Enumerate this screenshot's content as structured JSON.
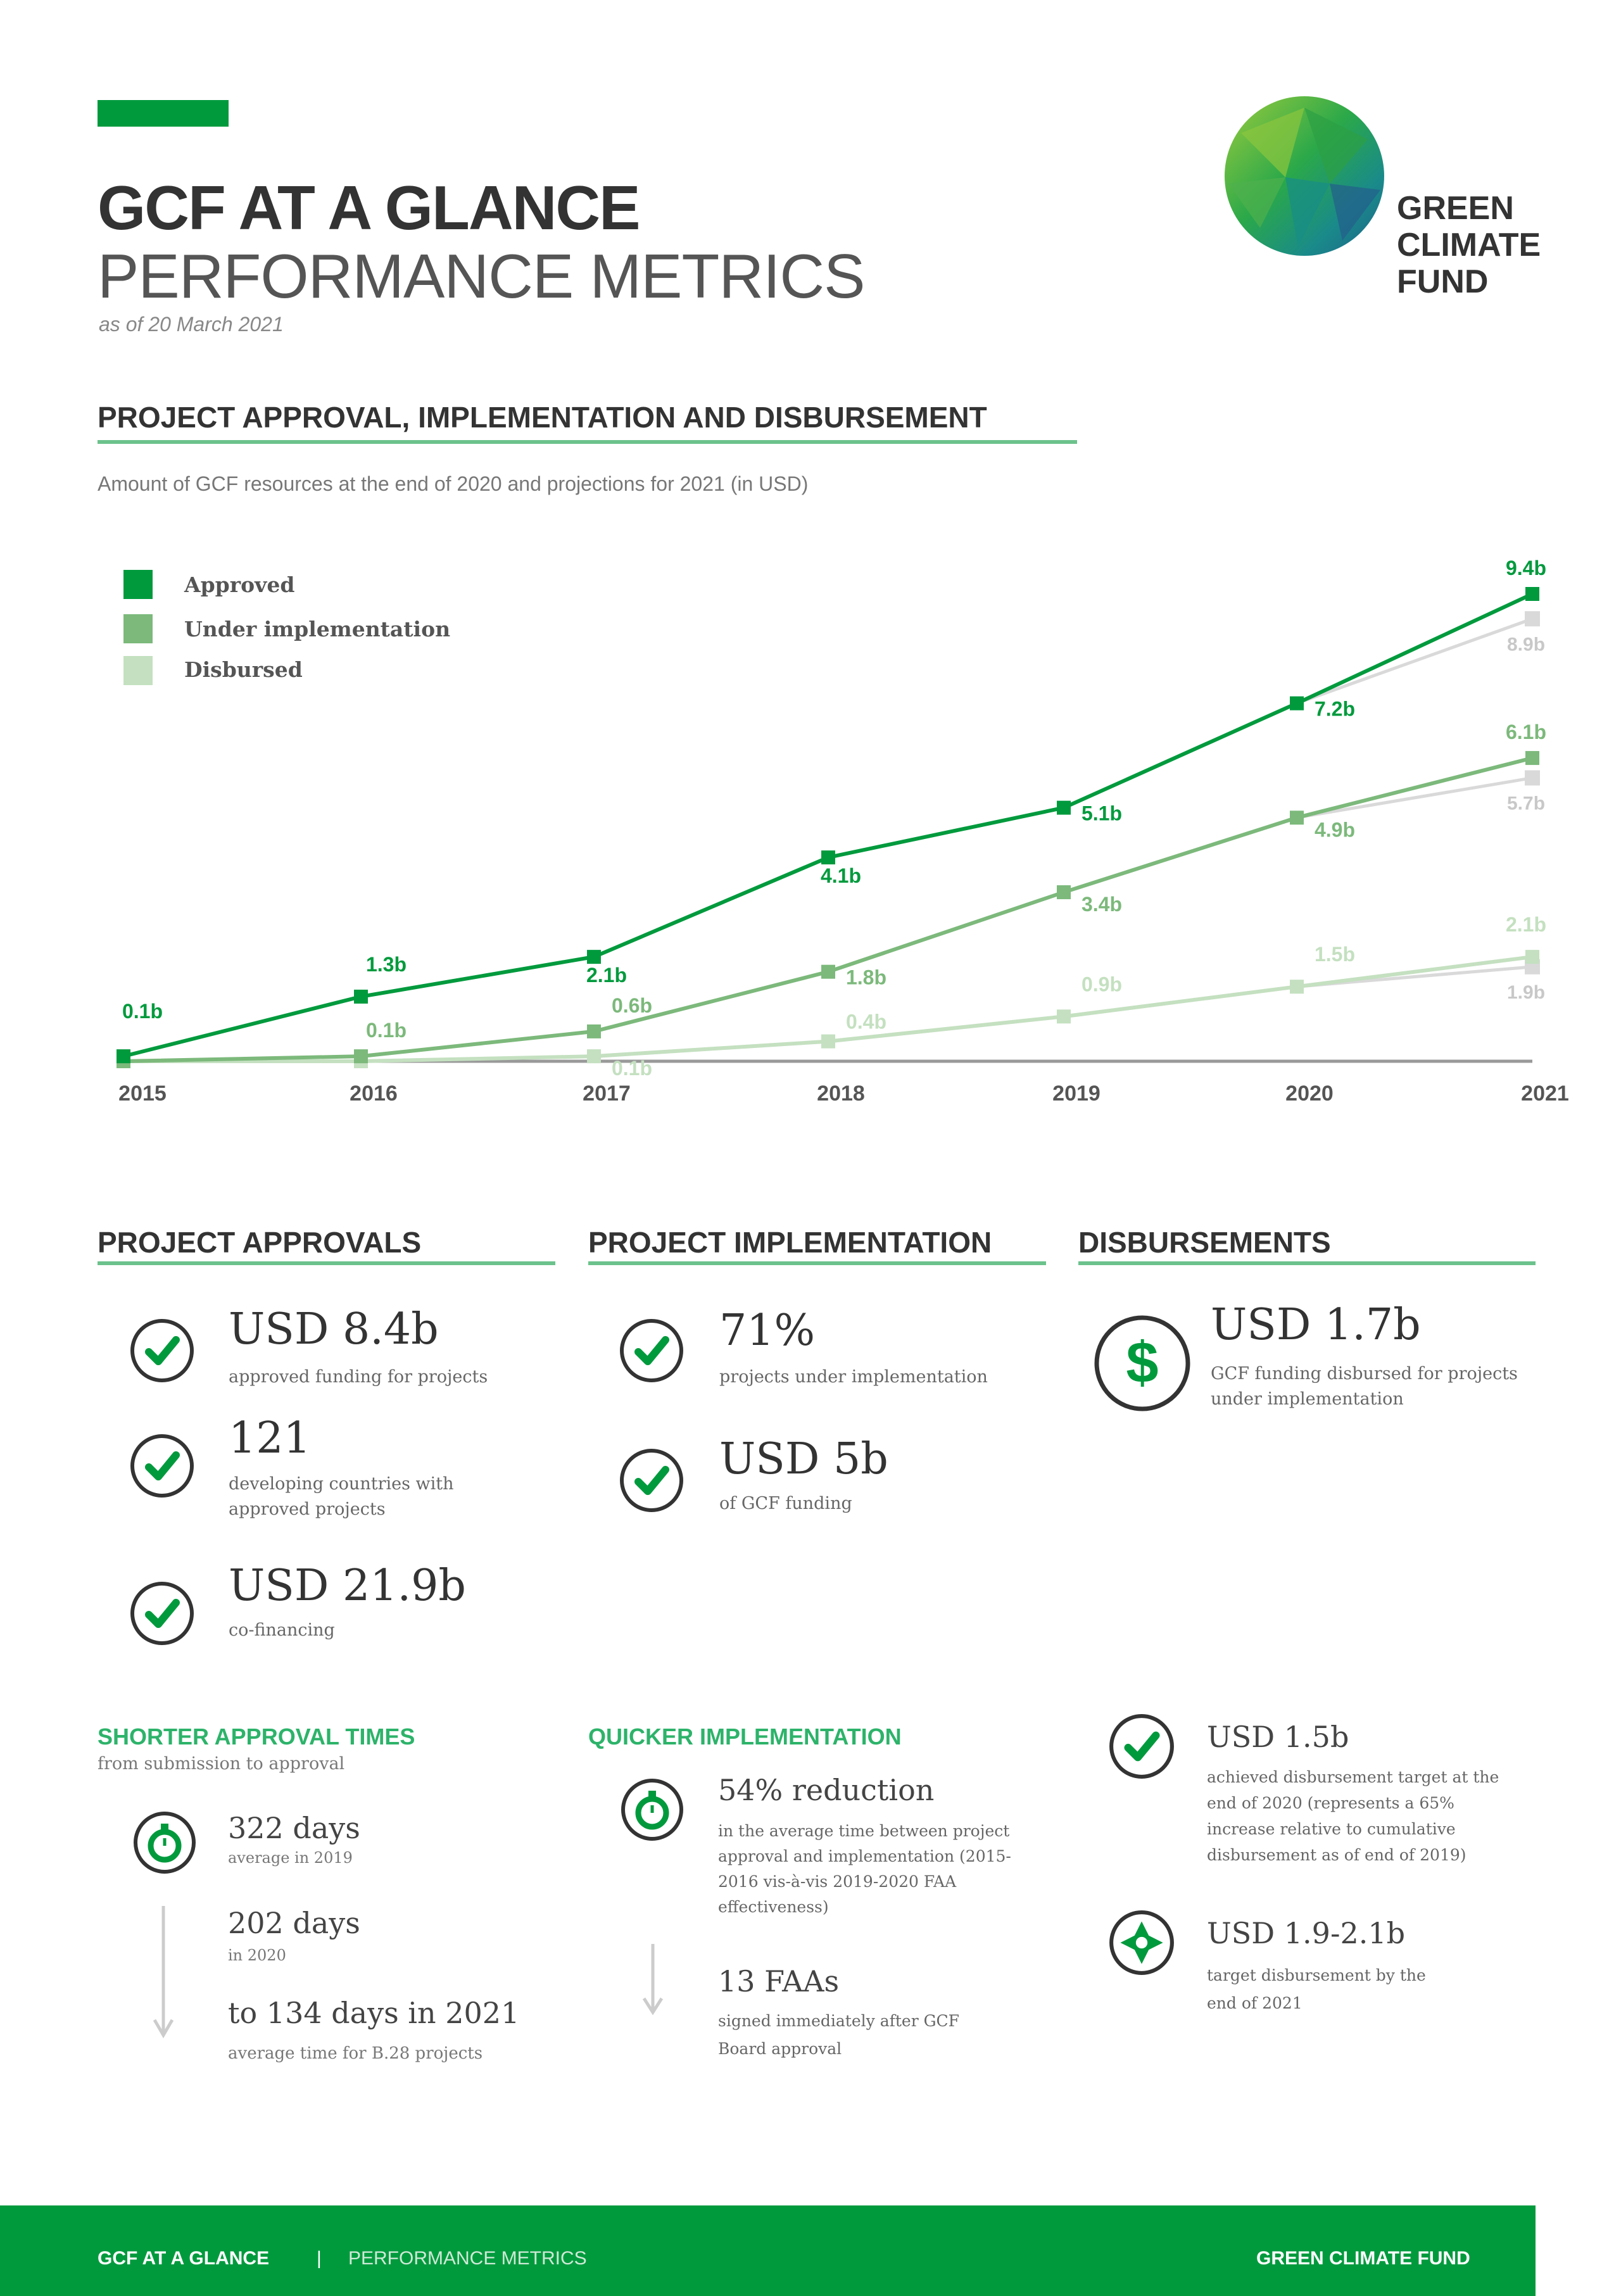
{
  "header": {
    "title": "GCF AT A GLANCE",
    "subtitle": "PERFORMANCE METRICS",
    "date": "as of 20 March 2021",
    "logo_text": [
      "GREEN",
      "CLIMATE",
      "FUND"
    ],
    "accent_color": "#009a3d"
  },
  "chart_section": {
    "heading": "PROJECT APPROVAL, IMPLEMENTATION AND DISBURSEMENT",
    "subheading": "Amount of GCF resources at the end of 2020 and projections for 2021 (in USD)"
  },
  "chart_data": {
    "type": "line",
    "title": "",
    "xlabel": "",
    "ylabel": "",
    "x": [
      "2015",
      "2016",
      "2017",
      "2018",
      "2019",
      "2020",
      "2021"
    ],
    "ylim": [
      0,
      9.4
    ],
    "grid": false,
    "legend_position": "top-left",
    "series": [
      {
        "name": "Approved",
        "color": "#009a3d",
        "values": [
          0.1,
          1.3,
          2.1,
          4.1,
          5.1,
          7.2,
          9.4
        ],
        "labels": [
          "0.1b",
          "1.3b",
          "2.1b",
          "4.1b",
          "5.1b",
          "7.2b",
          "9.4b"
        ],
        "projection_low": 8.9,
        "projection_low_label": "8.9b"
      },
      {
        "name": "Under implementation",
        "color": "#7cb97b",
        "values": [
          0,
          0.1,
          0.6,
          1.8,
          3.4,
          4.9,
          6.1
        ],
        "labels": [
          "",
          "0.1b",
          "0.6b",
          "1.8b",
          "3.4b",
          "4.9b",
          "6.1b"
        ],
        "projection_low": 5.7,
        "projection_low_label": "5.7b"
      },
      {
        "name": "Disbursed",
        "color": "#c4e0c0",
        "values": [
          0,
          0,
          0.1,
          0.4,
          0.9,
          1.5,
          2.1
        ],
        "labels": [
          "",
          "",
          "0.1b",
          "0.4b",
          "0.9b",
          "1.5b",
          "2.1b"
        ],
        "projection_low": 1.9,
        "projection_low_label": "1.9b"
      }
    ],
    "projection_color": "#d9d9d9"
  },
  "approvals": {
    "heading": "PROJECT APPROVALS",
    "items": [
      {
        "value": "USD 8.4b",
        "desc": "approved funding for projects",
        "icon": "check-circle-icon"
      },
      {
        "value": "121",
        "desc": "developing countries with approved projects",
        "icon": "check-circle-icon"
      },
      {
        "value": "USD 21.9b",
        "desc": "co-financing",
        "icon": "check-circle-icon"
      }
    ]
  },
  "implementation": {
    "heading": "PROJECT IMPLEMENTATION",
    "items": [
      {
        "value": "71%",
        "desc": "projects under implementation",
        "icon": "check-circle-icon"
      },
      {
        "value": "USD 5b",
        "desc": "of GCF funding",
        "icon": "check-circle-icon"
      }
    ]
  },
  "disbursements": {
    "heading": "DISBURSEMENTS",
    "items": [
      {
        "value": "USD 1.7b",
        "desc": "GCF funding disbursed for projects under implementation",
        "icon": "dollar-circle-icon"
      }
    ]
  },
  "approval_times": {
    "heading": "SHORTER APPROVAL TIMES",
    "subheading": "from submission to approval",
    "items": [
      {
        "value": "322 days",
        "desc": "average in 2019"
      },
      {
        "value": "202 days",
        "desc": "in 2020"
      },
      {
        "value": "to 134 days in 2021",
        "desc": "average time for B.28 projects"
      }
    ]
  },
  "quicker_implementation": {
    "heading": "QUICKER IMPLEMENTATION",
    "items": [
      {
        "value": "54% reduction",
        "desc": "in the average time between project approval and implementation (2015-2016 vis-à-vis 2019-2020 FAA effectiveness)"
      },
      {
        "value": "13 FAAs",
        "desc": "signed immediately after GCF Board approval"
      }
    ]
  },
  "disbursement_targets": {
    "items": [
      {
        "value": "USD 1.5b",
        "desc": "achieved disbursement target at the end of 2020 (represents a 65% increase relative to cumulative disbursement as of end of 2019)",
        "icon": "check-circle-icon"
      },
      {
        "value": "USD 1.9-2.1b",
        "desc": "target disbursement by the end of 2021",
        "icon": "target-icon"
      }
    ]
  },
  "footer": {
    "left": "GCF AT A GLANCE",
    "separator": "|",
    "middle": "PERFORMANCE METRICS",
    "right": "GREEN CLIMATE FUND"
  }
}
